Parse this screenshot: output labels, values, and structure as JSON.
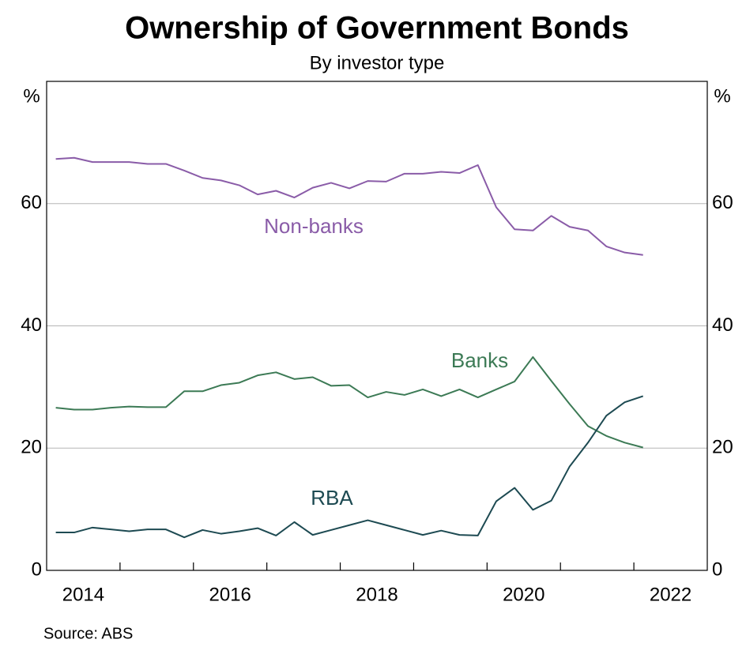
{
  "chart_data": {
    "type": "line",
    "title": "Ownership of Government Bonds",
    "subtitle": "By investor type",
    "y_unit_label": "%",
    "source": "Source:   ABS",
    "x": [
      2014.125,
      2014.375,
      2014.625,
      2014.875,
      2015.125,
      2015.375,
      2015.625,
      2015.875,
      2016.125,
      2016.375,
      2016.625,
      2016.875,
      2017.125,
      2017.375,
      2017.625,
      2017.875,
      2018.125,
      2018.375,
      2018.625,
      2018.875,
      2019.125,
      2019.375,
      2019.625,
      2019.875,
      2020.125,
      2020.375,
      2020.625,
      2020.875,
      2021.125,
      2021.375,
      2021.625,
      2021.875,
      2022.125
    ],
    "series": [
      {
        "name": "Non-banks",
        "color": "#8a5ca8",
        "values": [
          67.3,
          67.5,
          66.8,
          66.8,
          66.8,
          66.5,
          66.5,
          65.4,
          64.2,
          63.8,
          63.0,
          61.5,
          62.1,
          61.0,
          62.6,
          63.4,
          62.5,
          63.7,
          63.6,
          64.9,
          64.9,
          65.2,
          65.0,
          66.3,
          59.4,
          55.8,
          55.6,
          58.0,
          56.2,
          55.6,
          53.0,
          52.0,
          51.6
        ]
      },
      {
        "name": "Banks",
        "color": "#3c7a55",
        "values": [
          26.6,
          26.3,
          26.3,
          26.6,
          26.8,
          26.7,
          26.7,
          29.3,
          29.3,
          30.3,
          30.7,
          31.9,
          32.4,
          31.3,
          31.6,
          30.2,
          30.3,
          28.3,
          29.2,
          28.7,
          29.6,
          28.5,
          29.6,
          28.3,
          29.6,
          30.9,
          34.9,
          31.0,
          27.2,
          23.6,
          22.0,
          20.9,
          20.1
        ]
      },
      {
        "name": "RBA",
        "color": "#1d4a52",
        "values": [
          6.2,
          6.2,
          7.0,
          6.7,
          6.4,
          6.7,
          6.7,
          5.4,
          6.6,
          6.0,
          6.4,
          6.9,
          5.7,
          7.9,
          5.8,
          6.6,
          7.4,
          8.2,
          7.4,
          6.6,
          5.8,
          6.5,
          5.8,
          5.7,
          11.3,
          13.5,
          9.9,
          11.4,
          17.0,
          20.9,
          25.3,
          27.5,
          28.5
        ]
      }
    ],
    "xlim": [
      2014,
      2023
    ],
    "xticks": [
      2015,
      2016,
      2017,
      2018,
      2019,
      2020,
      2021,
      2022
    ],
    "xtick_labels": [
      {
        "value": 2014.5,
        "label": "2014"
      },
      {
        "value": 2016.5,
        "label": "2016"
      },
      {
        "value": 2018.5,
        "label": "2018"
      },
      {
        "value": 2020.5,
        "label": "2020"
      },
      {
        "value": 2022.5,
        "label": "2022"
      }
    ],
    "ylim": [
      0,
      80
    ],
    "yticks": [
      0,
      20,
      40,
      60
    ],
    "grid": true
  }
}
